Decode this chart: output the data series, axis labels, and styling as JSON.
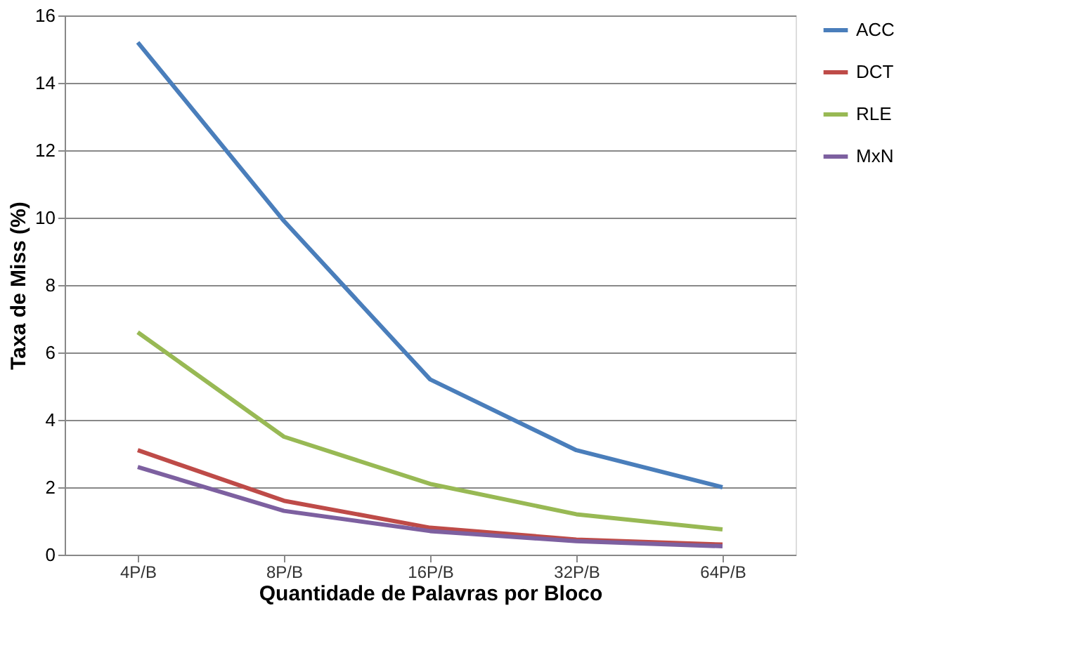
{
  "chart_data": {
    "type": "line",
    "xlabel": "Quantidade de Palavras por Bloco",
    "ylabel": "Taxa de Miss (%)",
    "categories": [
      "4P/B",
      "8P/B",
      "16P/B",
      "32P/B",
      "64P/B"
    ],
    "series": [
      {
        "name": "ACC",
        "color": "#4a7ebb",
        "values": [
          15.2,
          9.9,
          5.2,
          3.1,
          2.0
        ]
      },
      {
        "name": "DCT",
        "color": "#be4b48",
        "values": [
          3.1,
          1.6,
          0.8,
          0.45,
          0.3
        ]
      },
      {
        "name": "RLE",
        "color": "#98b954",
        "values": [
          6.6,
          3.5,
          2.1,
          1.2,
          0.75
        ]
      },
      {
        "name": "MxN",
        "color": "#7d60a0",
        "values": [
          2.6,
          1.3,
          0.7,
          0.4,
          0.25
        ]
      }
    ],
    "ylim": [
      0,
      16
    ],
    "yticks": [
      0,
      2,
      4,
      6,
      8,
      10,
      12,
      14,
      16
    ],
    "grid": "y",
    "legend": "right",
    "line_style": "solid",
    "marker": "none"
  }
}
